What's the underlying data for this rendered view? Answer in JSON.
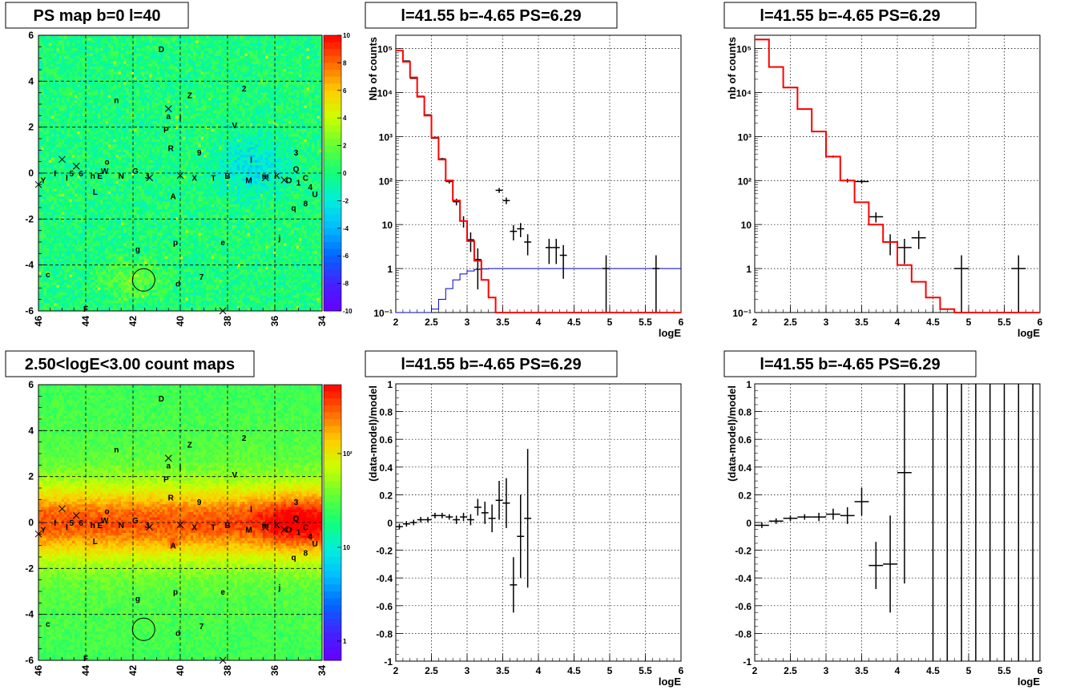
{
  "chart_data": [
    {
      "panel": "ps_map",
      "type": "heatmap",
      "title": "PS map b=0 l=40",
      "xlim": [
        46,
        34
      ],
      "ylim": [
        -6,
        6
      ],
      "x_ticks": [
        "46",
        "44",
        "42",
        "40",
        "38",
        "36",
        "34"
      ],
      "y_ticks": [
        "6",
        "4",
        "2",
        "0",
        "-2",
        "-4",
        "-6"
      ],
      "colorbar_ticks": [
        "10",
        "8",
        "6",
        "4",
        "2",
        "0",
        "-2",
        "-4",
        "-6",
        "-8",
        "-10"
      ],
      "grid": true
    },
    {
      "panel": "count_map",
      "type": "heatmap",
      "title": "2.50<logE<3.00 count maps",
      "xlim": [
        46,
        34
      ],
      "ylim": [
        -6,
        6
      ],
      "x_ticks": [
        "46",
        "44",
        "42",
        "40",
        "38",
        "36",
        "34"
      ],
      "y_ticks": [
        "6",
        "4",
        "2",
        "0",
        "-2",
        "-4",
        "-6"
      ],
      "colorbar_ticks": [
        "10²",
        "10",
        "1"
      ],
      "grid": true
    },
    {
      "panel": "spectrum_left",
      "type": "line",
      "title": "l=41.55 b=-4.65 PS=6.29",
      "xlabel": "logE",
      "ylabel": "Nb of counts",
      "xlim": [
        2,
        6
      ],
      "ylim": [
        0.1,
        200000
      ],
      "yscale": "log",
      "x_ticks": [
        "2",
        "2.5",
        "3",
        "3.5",
        "4",
        "4.5",
        "5",
        "5.5",
        "6"
      ],
      "y_ticks": [
        "10⁵",
        "10⁴",
        "10³",
        "10²",
        "10",
        "1",
        "10⁻¹"
      ],
      "grid": true,
      "model_red": {
        "x0": 2.0,
        "dx": 0.1,
        "y": [
          90000,
          50000,
          22000,
          8000,
          3000,
          950,
          300,
          100,
          35,
          12,
          4.2,
          1.5,
          0.55,
          0.22,
          0.1,
          0.1,
          0.1,
          0.1,
          0.1,
          0.1,
          0.1,
          0.1,
          0.1,
          0.1,
          0.1,
          0.1,
          0.1,
          0.1,
          0.1,
          0.1,
          0.1,
          0.1,
          0.1,
          0.1,
          0.1,
          0.1,
          0.1,
          0.1,
          0.1,
          0.1
        ]
      },
      "model_blue": {
        "x0": 2.0,
        "dx": 0.1,
        "y": [
          0.1,
          0.1,
          0.1,
          0.1,
          0.1,
          0.12,
          0.2,
          0.35,
          0.55,
          0.75,
          0.88,
          0.95,
          0.98,
          1.0,
          1.0,
          1.0,
          1.0,
          1.0,
          1.0,
          1.0,
          1.0,
          1.0,
          1.0,
          1.0,
          1.0,
          1.0,
          1.0,
          1.0,
          1.0,
          1.0,
          1.0,
          1.0,
          1.0,
          1.0,
          1.0,
          1.0,
          1.0,
          1.0,
          1.0,
          1.0
        ]
      },
      "data_points": [
        [
          2.05,
          90000
        ],
        [
          2.15,
          52000
        ],
        [
          2.25,
          21000
        ],
        [
          2.35,
          8200
        ],
        [
          2.45,
          3100
        ],
        [
          2.55,
          920
        ],
        [
          2.65,
          310
        ],
        [
          2.75,
          95
        ],
        [
          2.85,
          33
        ],
        [
          2.95,
          12
        ],
        [
          3.05,
          4.5
        ],
        [
          3.15,
          1.6
        ],
        [
          3.45,
          60
        ],
        [
          3.55,
          35
        ],
        [
          3.65,
          7
        ],
        [
          3.75,
          8
        ],
        [
          3.85,
          4
        ],
        [
          4.15,
          3
        ],
        [
          4.25,
          3
        ],
        [
          4.35,
          2
        ],
        [
          4.95,
          1
        ],
        [
          5.65,
          1
        ]
      ]
    },
    {
      "panel": "spectrum_right",
      "type": "line",
      "title": "l=41.55 b=-4.65 PS=6.29",
      "xlabel": "logE",
      "ylabel": "nb of counts",
      "xlim": [
        2,
        6
      ],
      "ylim": [
        0.1,
        200000
      ],
      "yscale": "log",
      "x_ticks": [
        "2",
        "2.5",
        "3",
        "3.5",
        "4",
        "4.5",
        "5",
        "5.5",
        "6"
      ],
      "y_ticks": [
        "10⁵",
        "10⁴",
        "10³",
        "10²",
        "10",
        "1",
        "10⁻¹"
      ],
      "grid": true,
      "model_red": {
        "x0": 2.0,
        "dx": 0.2,
        "y": [
          160000,
          38000,
          13000,
          4200,
          1300,
          350,
          100,
          32,
          10,
          4,
          1.2,
          0.5,
          0.22,
          0.12,
          0.1,
          0.1,
          0.1,
          0.1,
          0.1,
          0.1
        ]
      },
      "data_points": [
        [
          2.1,
          160000
        ],
        [
          2.3,
          38000
        ],
        [
          2.5,
          13000
        ],
        [
          2.7,
          4200
        ],
        [
          2.9,
          1300
        ],
        [
          3.1,
          350
        ],
        [
          3.3,
          100
        ],
        [
          3.5,
          95
        ],
        [
          3.7,
          15
        ],
        [
          3.9,
          4
        ],
        [
          4.1,
          3
        ],
        [
          4.3,
          5
        ],
        [
          4.9,
          1
        ],
        [
          5.7,
          1
        ]
      ]
    },
    {
      "panel": "residual_left",
      "type": "scatter",
      "title": "l=41.55 b=-4.65 PS=6.29",
      "xlabel": "logE",
      "ylabel": "(data-model)/model",
      "xlim": [
        2,
        6
      ],
      "ylim": [
        -1,
        1
      ],
      "x_ticks": [
        "2",
        "2.5",
        "3",
        "3.5",
        "4",
        "4.5",
        "5",
        "5.5",
        "6"
      ],
      "y_ticks": [
        "1",
        "0.8",
        "0.6",
        "0.4",
        "0.2",
        "0",
        "-0.2",
        "-0.4",
        "-0.6",
        "-0.8",
        "-1"
      ],
      "grid": true,
      "points": [
        [
          2.05,
          -0.03,
          0.02
        ],
        [
          2.15,
          -0.01,
          0.02
        ],
        [
          2.25,
          0.0,
          0.02
        ],
        [
          2.35,
          0.02,
          0.02
        ],
        [
          2.45,
          0.02,
          0.02
        ],
        [
          2.55,
          0.05,
          0.02
        ],
        [
          2.65,
          0.05,
          0.02
        ],
        [
          2.75,
          0.04,
          0.02
        ],
        [
          2.85,
          0.02,
          0.03
        ],
        [
          2.95,
          0.04,
          0.03
        ],
        [
          3.05,
          0.02,
          0.04
        ],
        [
          3.15,
          0.11,
          0.06
        ],
        [
          3.25,
          0.07,
          0.08
        ],
        [
          3.35,
          0.03,
          0.1
        ],
        [
          3.45,
          0.16,
          0.14
        ],
        [
          3.55,
          0.14,
          0.18
        ],
        [
          3.65,
          -0.45,
          0.2
        ],
        [
          3.75,
          -0.1,
          0.3
        ],
        [
          3.85,
          0.03,
          0.5
        ]
      ]
    },
    {
      "panel": "residual_right",
      "type": "scatter",
      "title": "l=41.55 b=-4.65 PS=6.29",
      "xlabel": "logE",
      "ylabel": "(data-model)/model",
      "xlim": [
        2,
        6
      ],
      "ylim": [
        -1,
        1
      ],
      "x_ticks": [
        "2",
        "2.5",
        "3",
        "3.5",
        "4",
        "4.5",
        "5",
        "5.5",
        "6"
      ],
      "y_ticks": [
        "1",
        "0.8",
        "0.6",
        "0.4",
        "0.2",
        "0",
        "-0.2",
        "-0.4",
        "-0.6",
        "-0.8",
        "-1"
      ],
      "grid": true,
      "points": [
        [
          2.1,
          -0.02,
          0.02
        ],
        [
          2.3,
          0.01,
          0.02
        ],
        [
          2.5,
          0.03,
          0.02
        ],
        [
          2.7,
          0.04,
          0.02
        ],
        [
          2.9,
          0.04,
          0.03
        ],
        [
          3.1,
          0.06,
          0.04
        ],
        [
          3.3,
          0.05,
          0.06
        ],
        [
          3.5,
          0.15,
          0.1
        ],
        [
          3.7,
          -0.31,
          0.17
        ],
        [
          3.9,
          -0.3,
          0.35
        ],
        [
          4.1,
          0.36,
          0.8
        ]
      ],
      "full_range_bars_x": [
        4.5,
        4.7,
        4.9,
        5.1,
        5.3,
        5.5,
        5.7,
        5.9
      ]
    }
  ],
  "sources": [
    {
      "l": 45.8,
      "b": -0.3,
      "t": "Y"
    },
    {
      "l": 45.3,
      "b": 0.0,
      "t": "f"
    },
    {
      "l": 44.8,
      "b": -0.2,
      "t": "l"
    },
    {
      "l": 44.6,
      "b": 0.0,
      "t": "5"
    },
    {
      "l": 44.2,
      "b": 0.0,
      "t": "6"
    },
    {
      "l": 43.7,
      "b": -0.1,
      "t": "h"
    },
    {
      "l": 43.4,
      "b": -0.1,
      "t": "E"
    },
    {
      "l": 43.2,
      "b": 0.1,
      "t": "W"
    },
    {
      "l": 43.1,
      "b": 0.5,
      "t": "o"
    },
    {
      "l": 43.6,
      "b": -0.8,
      "t": "L"
    },
    {
      "l": 42.5,
      "b": -0.1,
      "t": "N"
    },
    {
      "l": 41.9,
      "b": 0.1,
      "t": "G"
    },
    {
      "l": 41.4,
      "b": -0.1,
      "t": "J"
    },
    {
      "l": 40.6,
      "b": 1.9,
      "t": "P"
    },
    {
      "l": 40.4,
      "b": 1.1,
      "t": "R"
    },
    {
      "l": 40.0,
      "b": 2.4,
      "t": "l"
    },
    {
      "l": 39.2,
      "b": 0.9,
      "t": "9"
    },
    {
      "l": 39.4,
      "b": -0.2,
      "t": "X"
    },
    {
      "l": 38.6,
      "b": -0.2,
      "t": "T"
    },
    {
      "l": 38.0,
      "b": -0.1,
      "t": "B"
    },
    {
      "l": 37.1,
      "b": -0.3,
      "t": "M"
    },
    {
      "l": 37.0,
      "b": 0.6,
      "t": "l"
    },
    {
      "l": 36.4,
      "b": -0.1,
      "t": "m"
    },
    {
      "l": 35.9,
      "b": -0.1,
      "t": "K"
    },
    {
      "l": 37.7,
      "b": 2.1,
      "t": "V"
    },
    {
      "l": 40.3,
      "b": -1.0,
      "t": "A"
    },
    {
      "l": 40.2,
      "b": -3.0,
      "t": "p"
    },
    {
      "l": 35.1,
      "b": 0.9,
      "t": "3"
    },
    {
      "l": 35.1,
      "b": 0.2,
      "t": "Q"
    },
    {
      "l": 35.4,
      "b": -0.3,
      "t": "O"
    },
    {
      "l": 35.0,
      "b": -0.4,
      "t": "1"
    },
    {
      "l": 34.7,
      "b": -0.2,
      "t": "C"
    },
    {
      "l": 34.5,
      "b": -0.6,
      "t": "4"
    },
    {
      "l": 34.3,
      "b": -0.9,
      "t": "U"
    },
    {
      "l": 34.7,
      "b": -1.3,
      "t": "8"
    },
    {
      "l": 35.2,
      "b": -1.5,
      "t": "q"
    },
    {
      "l": 35.8,
      "b": -2.8,
      "t": "j"
    },
    {
      "l": 38.2,
      "b": -3.0,
      "t": "e"
    },
    {
      "l": 41.8,
      "b": -3.3,
      "t": "g"
    },
    {
      "l": 39.1,
      "b": -4.5,
      "t": "7"
    },
    {
      "l": 40.1,
      "b": -4.8,
      "t": "d"
    },
    {
      "l": 45.6,
      "b": -4.4,
      "t": "c"
    },
    {
      "l": 44.0,
      "b": -5.9,
      "t": "F"
    },
    {
      "l": 40.8,
      "b": 5.4,
      "t": "D"
    },
    {
      "l": 39.6,
      "b": 3.4,
      "t": "Z"
    },
    {
      "l": 37.3,
      "b": 3.7,
      "t": "2"
    },
    {
      "l": 42.7,
      "b": 3.2,
      "t": "n"
    },
    {
      "l": 40.5,
      "b": 2.5,
      "t": "a"
    }
  ],
  "crosses": [
    {
      "l": 45.0,
      "b": 0.6
    },
    {
      "l": 44.4,
      "b": 0.3
    },
    {
      "l": 40.5,
      "b": 2.8
    },
    {
      "l": 41.3,
      "b": -0.2
    },
    {
      "l": 40.0,
      "b": -0.1
    },
    {
      "l": 36.4,
      "b": -0.2
    },
    {
      "l": 35.6,
      "b": -0.3
    },
    {
      "l": 46.0,
      "b": -0.5
    },
    {
      "l": 38.2,
      "b": -6.0
    }
  ],
  "circle_marker": {
    "l": 41.55,
    "b": -4.65
  }
}
